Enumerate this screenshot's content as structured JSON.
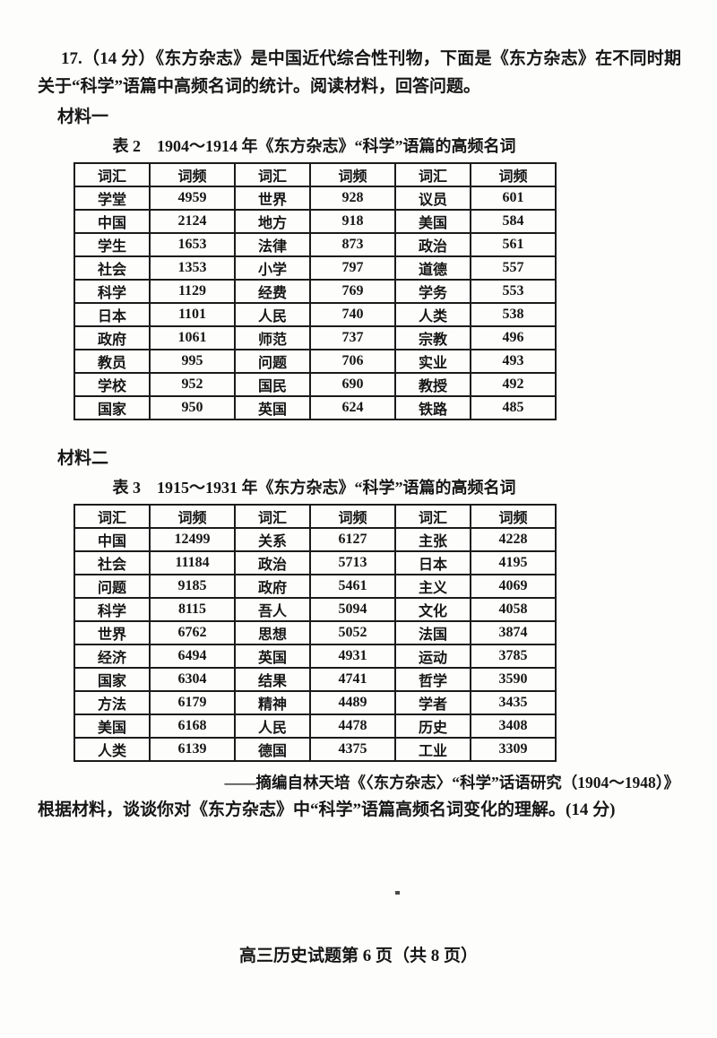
{
  "colors": {
    "ink": "#161616",
    "paper": "#fdfdfc",
    "table_border": "#1b1b1b"
  },
  "intro": "17.（14 分）《东方杂志》是中国近代综合性刊物，下面是《东方杂志》在不同时期关于“科学”语篇中高频名词的统计。阅读材料，回答问题。",
  "material1": {
    "label": "材料一",
    "table_title": "表 2　1904～1914 年《东方杂志》“科学”语篇的高频名词"
  },
  "table2": {
    "headers": [
      "词汇",
      "词频",
      "词汇",
      "词频",
      "词汇",
      "词频"
    ],
    "rows": [
      [
        "学堂",
        "4959",
        "世界",
        "928",
        "议员",
        "601"
      ],
      [
        "中国",
        "2124",
        "地方",
        "918",
        "美国",
        "584"
      ],
      [
        "学生",
        "1653",
        "法律",
        "873",
        "政治",
        "561"
      ],
      [
        "社会",
        "1353",
        "小学",
        "797",
        "道德",
        "557"
      ],
      [
        "科学",
        "1129",
        "经费",
        "769",
        "学务",
        "553"
      ],
      [
        "日本",
        "1101",
        "人民",
        "740",
        "人类",
        "538"
      ],
      [
        "政府",
        "1061",
        "师范",
        "737",
        "宗教",
        "496"
      ],
      [
        "教员",
        "995",
        "问题",
        "706",
        "实业",
        "493"
      ],
      [
        "学校",
        "952",
        "国民",
        "690",
        "教授",
        "492"
      ],
      [
        "国家",
        "950",
        "英国",
        "624",
        "铁路",
        "485"
      ]
    ]
  },
  "material2": {
    "label": "材料二",
    "table_title": "表 3　1915～1931 年《东方杂志》“科学”语篇的高频名词"
  },
  "table3": {
    "headers": [
      "词汇",
      "词频",
      "词汇",
      "词频",
      "词汇",
      "词频"
    ],
    "rows": [
      [
        "中国",
        "12499",
        "关系",
        "6127",
        "主张",
        "4228"
      ],
      [
        "社会",
        "11184",
        "政治",
        "5713",
        "日本",
        "4195"
      ],
      [
        "问题",
        "9185",
        "政府",
        "5461",
        "主义",
        "4069"
      ],
      [
        "科学",
        "8115",
        "吾人",
        "5094",
        "文化",
        "4058"
      ],
      [
        "世界",
        "6762",
        "思想",
        "5052",
        "法国",
        "3874"
      ],
      [
        "经济",
        "6494",
        "英国",
        "4931",
        "运动",
        "3785"
      ],
      [
        "国家",
        "6304",
        "结果",
        "4741",
        "哲学",
        "3590"
      ],
      [
        "方法",
        "6179",
        "精神",
        "4489",
        "学者",
        "3435"
      ],
      [
        "美国",
        "6168",
        "人民",
        "4478",
        "历史",
        "3408"
      ],
      [
        "人类",
        "6139",
        "德国",
        "4375",
        "工业",
        "3309"
      ]
    ]
  },
  "citation": "——摘编自林天培《〈东方杂志〉“科学”话语研究（1904～1948）》",
  "question": "根据材料，谈谈你对《东方杂志》中“科学”语篇高频名词变化的理解。(14 分)",
  "footer": "高三历史试题第 6 页（共 8 页）"
}
